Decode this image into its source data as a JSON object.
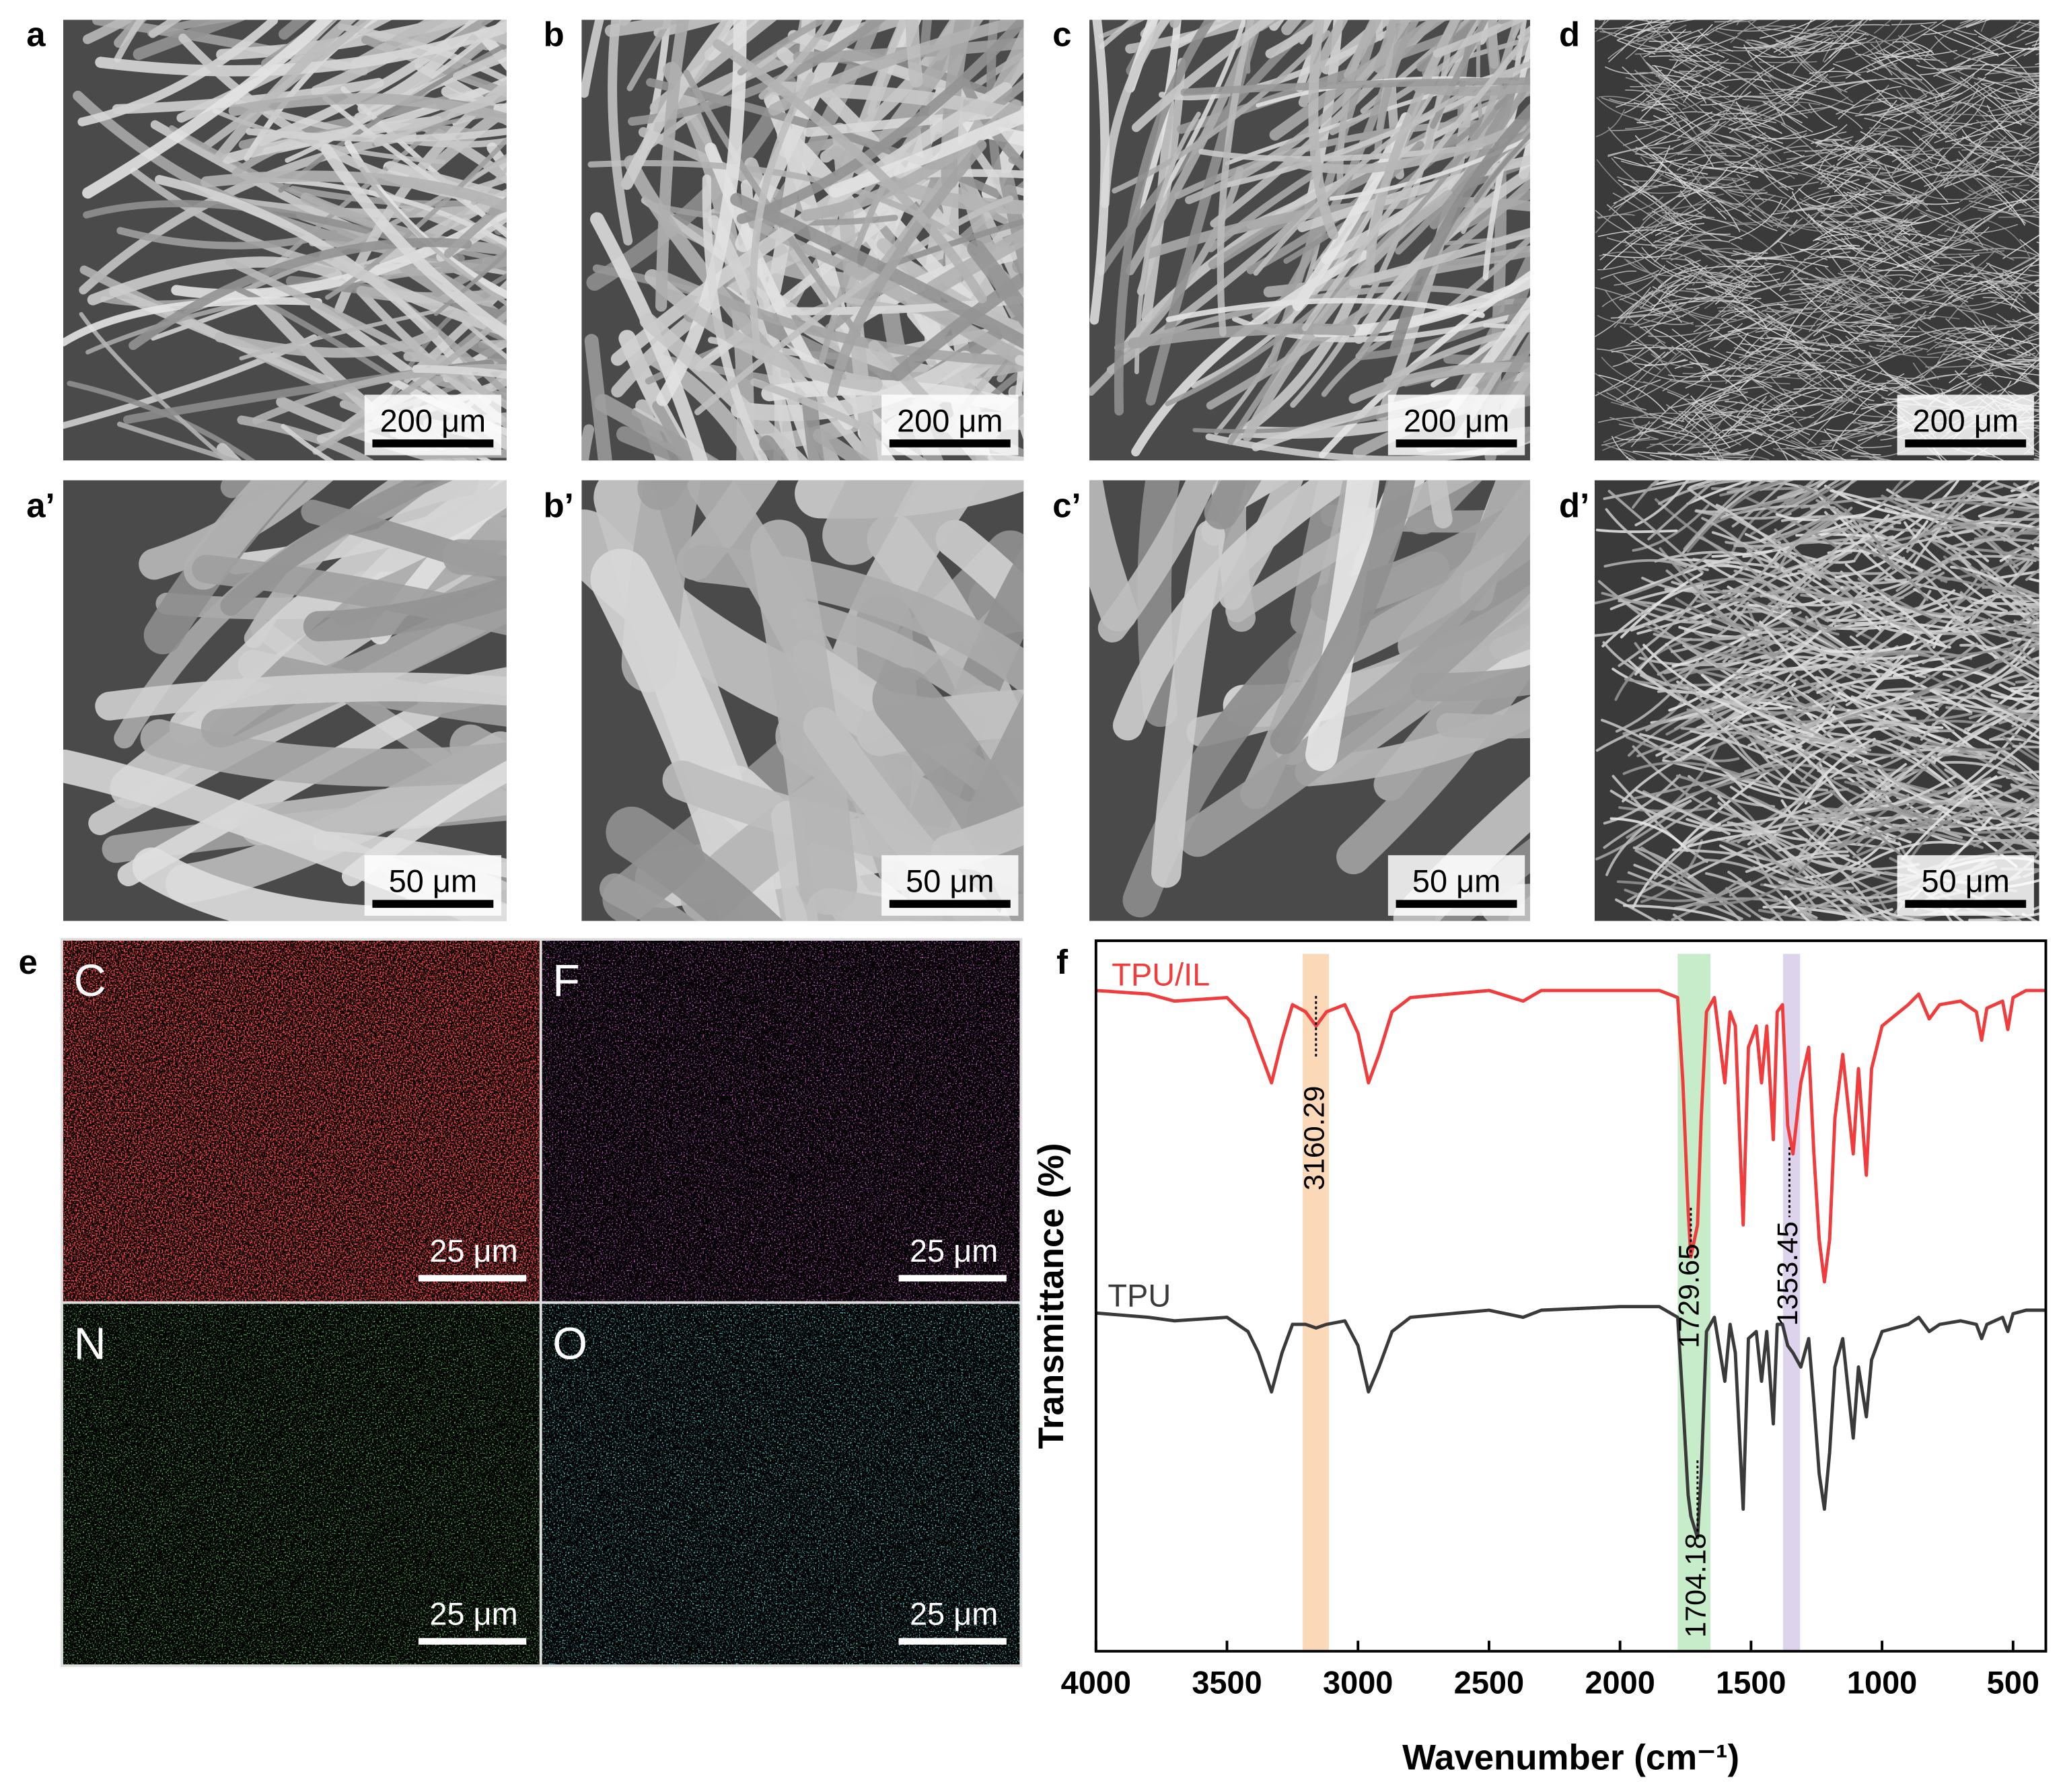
{
  "panels": [
    {
      "letter": "a",
      "scale_bar": "200 μm"
    },
    {
      "letter": "b",
      "scale_bar": "200 μm"
    },
    {
      "letter": "c",
      "scale_bar": "200 μm"
    },
    {
      "letter": "d",
      "scale_bar": "200 μm"
    },
    {
      "letter": "a’",
      "scale_bar": "50 μm"
    },
    {
      "letter": "b’",
      "scale_bar": "50 μm"
    },
    {
      "letter": "c’",
      "scale_bar": "50 μm"
    },
    {
      "letter": "d’",
      "scale_bar": "50 μm"
    }
  ],
  "eds": {
    "letter": "e",
    "maps": [
      {
        "element": "C",
        "scale_bar": "25 μm",
        "color": "#e01010"
      },
      {
        "element": "F",
        "scale_bar": "25 μm",
        "color": "#c020c0"
      },
      {
        "element": "N",
        "scale_bar": "25 μm",
        "color": "#20b020"
      },
      {
        "element": "O",
        "scale_bar": "25 μm",
        "color": "#20c8c8"
      }
    ]
  },
  "chart_data": {
    "type": "line",
    "letter": "f",
    "x_label": "Wavenumber (cm⁻¹)",
    "y_label": "Transmittance (%)",
    "x": [
      4000,
      3800,
      3700,
      3500,
      3420,
      3380,
      3330,
      3290,
      3250,
      3200,
      3160,
      3120,
      3050,
      3000,
      2960,
      2920,
      2870,
      2800,
      2500,
      2370,
      2300,
      2000,
      1850,
      1780,
      1760,
      1740,
      1729.65,
      1704.18,
      1690,
      1670,
      1640,
      1600,
      1580,
      1560,
      1530,
      1510,
      1480,
      1460,
      1440,
      1415,
      1400,
      1380,
      1360,
      1340,
      1310,
      1280,
      1260,
      1240,
      1220,
      1200,
      1180,
      1150,
      1110,
      1090,
      1060,
      1040,
      1000,
      900,
      860,
      820,
      780,
      700,
      640,
      620,
      600,
      540,
      520,
      500,
      450,
      375
    ],
    "series": [
      {
        "name": "TPU/IL",
        "color": "#f03c3c",
        "values": [
          93,
          92.5,
          91.5,
          92,
          89,
          85,
          80,
          86,
          91,
          90,
          88,
          90,
          91,
          87,
          80,
          84,
          90,
          92,
          93,
          91.5,
          93,
          93,
          93,
          92,
          80,
          62,
          55.5,
          60,
          75,
          90,
          92,
          80,
          90,
          88,
          60,
          85,
          88,
          80,
          88,
          72,
          90,
          91,
          74,
          70,
          80,
          85,
          70,
          58,
          52,
          58,
          75,
          84,
          70,
          82,
          67,
          82,
          88,
          91,
          92.5,
          89,
          91,
          91.5,
          90,
          86,
          90.5,
          91.5,
          87.5,
          92,
          93,
          93
        ]
      },
      {
        "name": "TPU",
        "color": "#3a3a3a",
        "values": [
          47.6,
          47,
          46.5,
          47,
          45,
          42,
          36.5,
          42,
          46,
          46,
          45.5,
          46,
          46.5,
          43,
          36.5,
          40,
          45,
          47,
          48,
          47,
          48,
          48.5,
          48.5,
          47,
          35,
          22,
          19,
          16,
          25,
          45,
          47,
          38,
          46,
          42,
          20,
          44,
          45,
          38,
          45,
          32,
          46,
          46,
          43,
          42,
          40,
          44,
          35,
          25,
          20,
          28,
          40,
          44,
          30,
          40,
          33,
          41,
          45,
          46,
          47,
          45,
          46,
          46.5,
          46,
          44,
          46,
          47,
          45,
          47.5,
          48,
          48
        ]
      }
    ],
    "xlim": [
      4000,
      375
    ],
    "ylim": [
      0,
      100
    ],
    "xticks": [
      4000,
      3500,
      3000,
      2500,
      2000,
      1500,
      1000,
      500
    ],
    "highlights": [
      {
        "from": 3211,
        "to": 3111,
        "color": "#fbd9b8"
      },
      {
        "from": 1780,
        "to": 1655,
        "color": "#c6ecc9"
      },
      {
        "from": 1378,
        "to": 1313,
        "color": "#ddd3ec"
      }
    ],
    "annotations": [
      {
        "label": "3160.29",
        "x": 3160.29
      },
      {
        "label": "1729.65",
        "x": 1729.65
      },
      {
        "label": "1704.18",
        "x": 1704.18
      },
      {
        "label": "1353.45",
        "x": 1353.45
      }
    ]
  }
}
